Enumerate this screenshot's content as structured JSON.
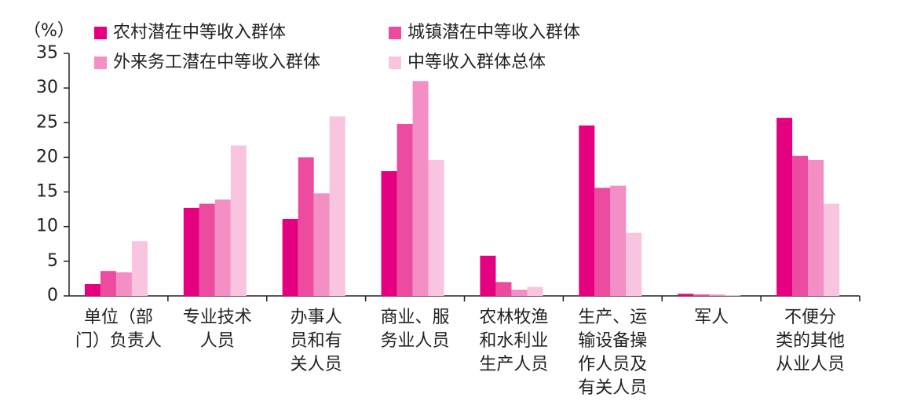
{
  "chart_data": {
    "type": "bar",
    "y_axis_label": "（%）",
    "categories": [
      [
        "单位（部",
        "门）负责人"
      ],
      [
        "专业技术",
        "人员"
      ],
      [
        "办事人",
        "员和有",
        "关人员"
      ],
      [
        "商业、服",
        "务业人员"
      ],
      [
        "农林牧渔",
        "和水利业",
        "生产人员"
      ],
      [
        "生产、运",
        "输设备操",
        "作人员及",
        "有关人员"
      ],
      [
        "军人"
      ],
      [
        "不便分",
        "类的其他",
        "从业人员"
      ]
    ],
    "series": [
      {
        "name": "农村潜在中等收入群体",
        "color": "#e4007f",
        "values": [
          1.7,
          12.7,
          11.1,
          18.0,
          5.8,
          24.6,
          0.3,
          25.7
        ]
      },
      {
        "name": "城镇潜在中等收入群体",
        "color": "#ec4b9f",
        "values": [
          3.6,
          13.3,
          20.0,
          24.8,
          2.0,
          15.6,
          0.2,
          20.2
        ]
      },
      {
        "name": "外来务工潜在中等收入群体",
        "color": "#f38fc4",
        "values": [
          3.4,
          13.9,
          14.8,
          31.0,
          0.9,
          15.9,
          0.2,
          19.6
        ]
      },
      {
        "name": "中等收入群体总体",
        "color": "#f9c4df",
        "values": [
          7.9,
          21.7,
          25.9,
          19.6,
          1.3,
          9.1,
          0.1,
          13.3
        ]
      }
    ],
    "ylim": [
      0,
      35
    ],
    "yticks": [
      0,
      5,
      10,
      15,
      20,
      25,
      30,
      35
    ],
    "grid": false
  }
}
